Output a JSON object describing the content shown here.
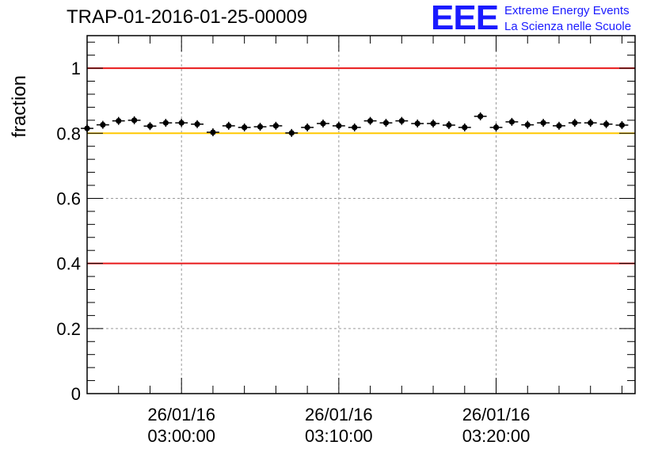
{
  "title": "TRAP-01-2016-01-25-00009",
  "logo": {
    "mark": "EEE",
    "line1": "Extreme Energy Events",
    "line2": "La Scienza nelle Scuole",
    "color": "#1a1aff"
  },
  "chart_data": {
    "type": "scatter",
    "title": "TRAP-01-2016-01-25-00009",
    "xlabel": "",
    "ylabel": "fraction",
    "ylim": [
      0,
      1.1
    ],
    "xlim": [
      "26/01/16 02:54:00",
      "26/01/16 03:28:50"
    ],
    "y_ticks": [
      "0",
      "0.2",
      "0.4",
      "0.6",
      "0.8",
      "1"
    ],
    "x_ticks": [
      {
        "date": "26/01/16",
        "time": "03:00:00"
      },
      {
        "date": "26/01/16",
        "time": "03:10:00"
      },
      {
        "date": "26/01/16",
        "time": "03:20:00"
      }
    ],
    "grid": true,
    "reference_lines": [
      {
        "y": 1.0,
        "color": "#e8191a"
      },
      {
        "y": 0.8,
        "color": "#ffc800"
      },
      {
        "y": 0.4,
        "color": "#e8191a"
      }
    ],
    "series": [
      {
        "marker_color": "#000000",
        "x": [
          "02:54:00",
          "02:55:00",
          "02:56:00",
          "02:57:00",
          "02:58:00",
          "02:59:00",
          "03:00:00",
          "03:01:00",
          "03:02:00",
          "03:03:00",
          "03:04:00",
          "03:05:00",
          "03:06:00",
          "03:07:00",
          "03:08:00",
          "03:09:00",
          "03:10:00",
          "03:11:00",
          "03:12:00",
          "03:13:00",
          "03:14:00",
          "03:15:00",
          "03:16:00",
          "03:17:00",
          "03:18:00",
          "03:19:00",
          "03:20:00",
          "03:21:00",
          "03:22:00",
          "03:23:00",
          "03:24:00",
          "03:25:00",
          "03:26:00",
          "03:27:00",
          "03:28:00"
        ],
        "y": [
          0.815,
          0.826,
          0.838,
          0.84,
          0.822,
          0.832,
          0.832,
          0.828,
          0.803,
          0.823,
          0.818,
          0.82,
          0.823,
          0.801,
          0.818,
          0.83,
          0.823,
          0.818,
          0.838,
          0.832,
          0.838,
          0.83,
          0.83,
          0.825,
          0.818,
          0.852,
          0.818,
          0.835,
          0.826,
          0.832,
          0.823,
          0.832,
          0.832,
          0.828,
          0.825
        ]
      }
    ]
  }
}
